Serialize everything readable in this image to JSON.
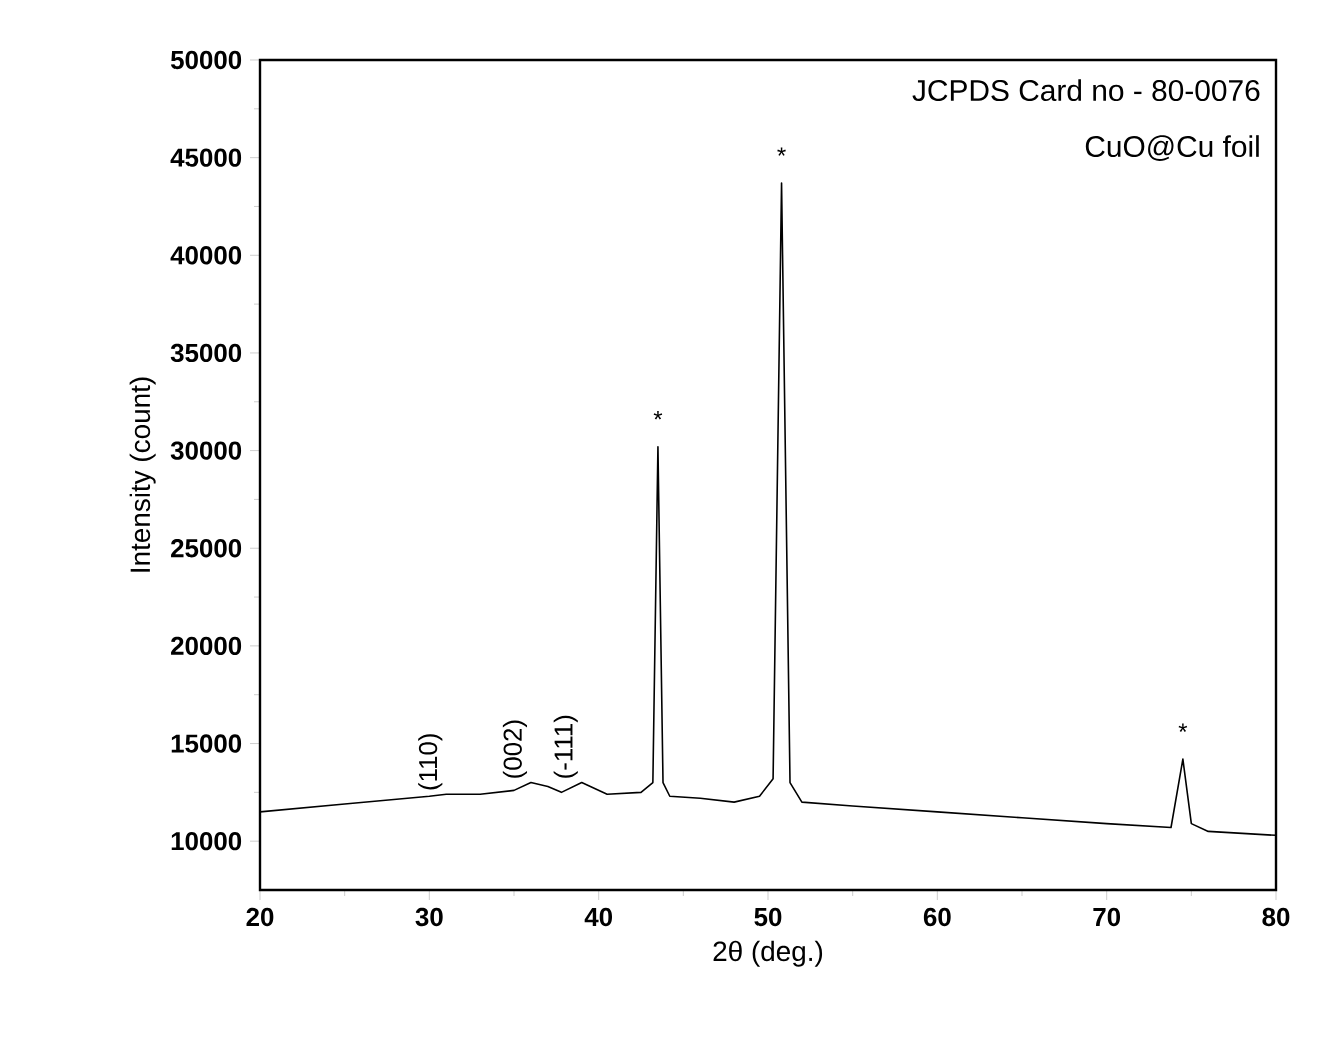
{
  "chart_data": {
    "type": "line",
    "xlabel": "2θ (deg.)",
    "ylabel": "Intensity (count)",
    "x": [
      20,
      25,
      30,
      31,
      33,
      35,
      36,
      37,
      37.8,
      39,
      40.5,
      42.5,
      43.2,
      43.5,
      43.8,
      44.2,
      46,
      48,
      49.5,
      50.3,
      50.8,
      51.3,
      52,
      55,
      60,
      65,
      70,
      73.8,
      74.5,
      75,
      76,
      80
    ],
    "series": [
      {
        "color": "#000000",
        "values": [
          11500,
          11900,
          12300,
          12400,
          12400,
          12600,
          13000,
          12800,
          12500,
          13000,
          12400,
          12500,
          13000,
          30200,
          13000,
          12300,
          12200,
          12000,
          12300,
          13200,
          43700,
          13000,
          12000,
          11800,
          11500,
          11200,
          10900,
          10700,
          14200,
          10900,
          10500,
          10300
        ]
      }
    ],
    "xlim": [
      20,
      80
    ],
    "ylim": [
      7500,
      50000
    ],
    "xticks": [
      20,
      30,
      40,
      50,
      60,
      70,
      80
    ],
    "yticks": [
      10000,
      15000,
      20000,
      25000,
      30000,
      35000,
      40000,
      45000,
      50000
    ],
    "grid": false,
    "marker": "none",
    "line_style": "solid",
    "annotations": [
      "JCPDS Card no - 80-0076",
      "CuO@Cu foil",
      {
        "text": "(110)",
        "x": 31,
        "y": 12400
      },
      {
        "text": "(002)",
        "x": 36,
        "y": 13000
      },
      {
        "text": "(-111)",
        "x": 39,
        "y": 13000
      },
      {
        "text": "*",
        "x": 43.5,
        "y": 30200
      },
      {
        "text": "*",
        "x": 50.8,
        "y": 43700
      },
      {
        "text": "*",
        "x": 74.5,
        "y": 14200
      }
    ]
  }
}
